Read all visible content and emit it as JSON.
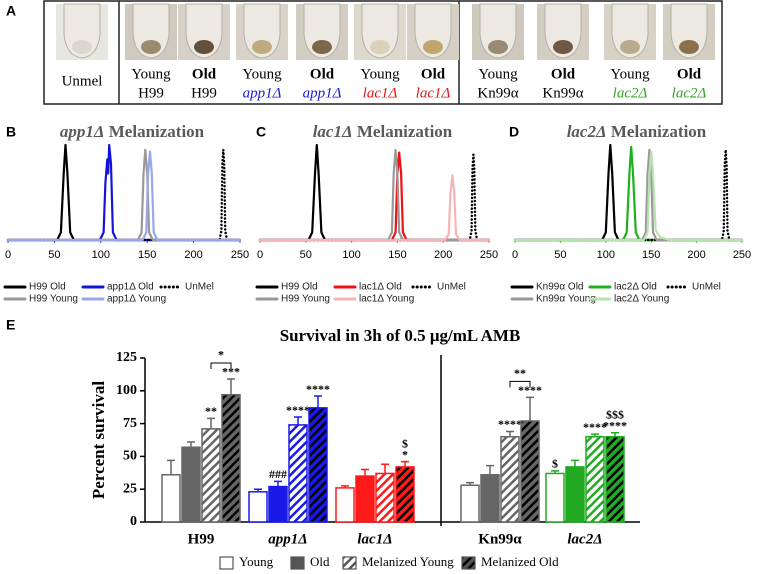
{
  "panel_labels": [
    "A",
    "B",
    "C",
    "D",
    "E"
  ],
  "photo_panel": {
    "samples": [
      {
        "lines": [
          "Unmel"
        ],
        "bold": false,
        "italic": false,
        "color": "#000000"
      },
      {
        "lines": [
          "Young",
          "H99"
        ],
        "bold": false,
        "italic": false,
        "color": "#000000"
      },
      {
        "lines": [
          "Old",
          "H99"
        ],
        "bold": true,
        "italic": false,
        "color": "#000000"
      },
      {
        "lines": [
          "Young",
          "app1Δ"
        ],
        "bold": false,
        "italic": true,
        "color": "#1a1ad0"
      },
      {
        "lines": [
          "Old",
          "app1Δ"
        ],
        "bold": true,
        "italic": true,
        "color": "#1a1ad0"
      },
      {
        "lines": [
          "Young",
          "lac1Δ"
        ],
        "bold": false,
        "italic": true,
        "color": "#e01818"
      },
      {
        "lines": [
          "Old",
          "lac1Δ"
        ],
        "bold": true,
        "italic": true,
        "color": "#e01818"
      },
      {
        "lines": [
          "Young",
          "Kn99α"
        ],
        "bold": false,
        "italic": false,
        "color": "#000000"
      },
      {
        "lines": [
          "Old",
          "Kn99α"
        ],
        "bold": true,
        "italic": false,
        "color": "#000000"
      },
      {
        "lines": [
          "Young",
          "lac2Δ"
        ],
        "bold": false,
        "italic": true,
        "color": "#3aa02a"
      },
      {
        "lines": [
          "Old",
          "lac2Δ"
        ],
        "bold": true,
        "italic": true,
        "color": "#3aa02a"
      }
    ]
  },
  "chart_data": [
    {
      "type": "line",
      "title": "app1Δ Melanization",
      "axis_color": "#3c46c8",
      "xlim": [
        0,
        250
      ],
      "xticks": [
        0,
        50,
        100,
        150,
        200,
        250
      ],
      "ylim": [
        0,
        100
      ],
      "series": [
        {
          "name": "H99 Old",
          "color": "#000000",
          "dash": "solid",
          "x": [
            0,
            53,
            57,
            60,
            62,
            64,
            67,
            71,
            250
          ],
          "values": [
            0,
            0,
            8,
            70,
            100,
            70,
            8,
            0,
            0
          ]
        },
        {
          "name": "app1Δ Old",
          "color": "#1414d8",
          "dash": "solid",
          "x": [
            0,
            99,
            103,
            105,
            107,
            108,
            109,
            111,
            113,
            117,
            250
          ],
          "values": [
            0,
            0,
            8,
            60,
            85,
            70,
            100,
            80,
            8,
            0,
            0
          ]
        },
        {
          "name": "UnMel",
          "color": "#000000",
          "dash": "dotted",
          "x": [
            0,
            228,
            230,
            231,
            232,
            233,
            234,
            236,
            250
          ],
          "values": [
            0,
            0,
            10,
            80,
            95,
            80,
            10,
            0,
            0
          ]
        },
        {
          "name": "H99 Young",
          "color": "#999999",
          "dash": "solid",
          "x": [
            0,
            140,
            144,
            146,
            148,
            150,
            152,
            156,
            250
          ],
          "values": [
            0,
            0,
            8,
            70,
            95,
            70,
            8,
            0,
            0
          ]
        },
        {
          "name": "app1Δ Young",
          "color": "#9aa6ea",
          "dash": "solid",
          "x": [
            0,
            145,
            149,
            151,
            153,
            155,
            157,
            161,
            250
          ],
          "values": [
            0,
            0,
            8,
            70,
            93,
            70,
            8,
            0,
            0
          ]
        }
      ]
    },
    {
      "type": "line",
      "title": "lac1Δ Melanization",
      "axis_color": "#e07a7a",
      "xlim": [
        0,
        250
      ],
      "xticks": [
        0,
        50,
        100,
        150,
        200,
        250
      ],
      "ylim": [
        0,
        100
      ],
      "series": [
        {
          "name": "H99 Old",
          "color": "#000000",
          "dash": "solid",
          "x": [
            0,
            53,
            57,
            60,
            62,
            64,
            67,
            71,
            250
          ],
          "values": [
            0,
            0,
            8,
            70,
            100,
            70,
            8,
            0,
            0
          ]
        },
        {
          "name": "lac1Δ Old",
          "color": "#ee1111",
          "dash": "solid",
          "x": [
            0,
            144,
            148,
            150,
            152,
            154,
            156,
            160,
            250
          ],
          "values": [
            0,
            0,
            8,
            70,
            92,
            70,
            8,
            0,
            0
          ]
        },
        {
          "name": "UnMel",
          "color": "#000000",
          "dash": "dotted",
          "x": [
            0,
            229,
            231,
            232,
            233,
            234,
            235,
            237,
            250
          ],
          "values": [
            0,
            0,
            10,
            75,
            90,
            75,
            10,
            0,
            0
          ]
        },
        {
          "name": "H99 Young",
          "color": "#999999",
          "dash": "solid",
          "x": [
            0,
            140,
            144,
            146,
            148,
            150,
            152,
            156,
            250
          ],
          "values": [
            0,
            0,
            8,
            70,
            95,
            70,
            8,
            0,
            0
          ]
        },
        {
          "name": "lac1Δ Young",
          "color": "#f5b5b5",
          "dash": "solid",
          "x": [
            0,
            202,
            206,
            208,
            210,
            212,
            214,
            218,
            250
          ],
          "values": [
            0,
            0,
            6,
            50,
            68,
            50,
            6,
            0,
            0
          ]
        }
      ]
    },
    {
      "type": "line",
      "title": "lac2Δ Melanization",
      "axis_color": "#6ab84c",
      "xlim": [
        0,
        250
      ],
      "xticks": [
        0,
        50,
        100,
        150,
        200,
        250
      ],
      "ylim": [
        0,
        100
      ],
      "series": [
        {
          "name": "Kn99α Old",
          "color": "#000000",
          "dash": "solid",
          "x": [
            0,
            96,
            100,
            103,
            105,
            107,
            110,
            114,
            250
          ],
          "values": [
            0,
            0,
            8,
            70,
            100,
            70,
            8,
            0,
            0
          ]
        },
        {
          "name": "lac2Δ Old",
          "color": "#1eb01e",
          "dash": "solid",
          "x": [
            0,
            119,
            123,
            126,
            128,
            130,
            133,
            137,
            250
          ],
          "values": [
            0,
            0,
            8,
            70,
            98,
            70,
            8,
            0,
            0
          ]
        },
        {
          "name": "UnMel",
          "color": "#000000",
          "dash": "dotted",
          "x": [
            0,
            228,
            230,
            231,
            232,
            233,
            234,
            236,
            250
          ],
          "values": [
            0,
            0,
            10,
            78,
            95,
            78,
            10,
            0,
            0
          ]
        },
        {
          "name": "Kn99α Young",
          "color": "#999999",
          "dash": "solid",
          "x": [
            0,
            140,
            144,
            146,
            148,
            150,
            152,
            156,
            250
          ],
          "values": [
            0,
            0,
            8,
            70,
            95,
            70,
            8,
            0,
            0
          ]
        },
        {
          "name": "lac2Δ Young",
          "color": "#b8e2b0",
          "dash": "solid",
          "x": [
            0,
            142,
            146,
            148,
            150,
            152,
            155,
            160,
            170,
            250
          ],
          "values": [
            0,
            0,
            8,
            70,
            93,
            70,
            10,
            3,
            0,
            0
          ]
        }
      ]
    },
    {
      "type": "bar",
      "title": "Survival in 3h of 0.5 μg/mL AMB",
      "ylabel": "Percent survival",
      "categories": [
        "H99",
        "app1Δ",
        "lac1Δ",
        "Kn99α",
        "lac2Δ"
      ],
      "category_italic": [
        false,
        true,
        true,
        false,
        true
      ],
      "category_colors": [
        "#666666",
        "#1a1ae8",
        "#ff1a1a",
        "#666666",
        "#22aa22"
      ],
      "legend_color": "#555555",
      "ylim": [
        0,
        125
      ],
      "yticks": [
        0,
        25,
        50,
        75,
        100,
        125
      ],
      "series": [
        {
          "name": "Young",
          "filled": false,
          "hatch": false,
          "values": [
            36,
            23,
            26,
            28,
            37
          ],
          "errors": [
            11,
            2,
            1.5,
            2,
            2
          ],
          "significance": [
            null,
            null,
            null,
            null,
            [
              "$"
            ]
          ]
        },
        {
          "name": "Old",
          "filled": true,
          "hatch": false,
          "values": [
            57,
            27,
            35,
            36,
            42
          ],
          "errors": [
            4,
            4,
            5,
            7,
            5
          ],
          "significance": [
            null,
            [
              "###"
            ],
            null,
            null,
            null
          ]
        },
        {
          "name": "Melanized Young",
          "filled": false,
          "hatch": true,
          "values": [
            71,
            74,
            37,
            65,
            65
          ],
          "errors": [
            8,
            6,
            7,
            4,
            2
          ],
          "significance": [
            [
              "**"
            ],
            [
              "****"
            ],
            null,
            [
              "****"
            ],
            [
              "****"
            ]
          ]
        },
        {
          "name": "Melanized Old",
          "filled": true,
          "hatch": true,
          "values": [
            97,
            87,
            42,
            77,
            65
          ],
          "errors": [
            12,
            9,
            4,
            18,
            3
          ],
          "significance": [
            [
              "***"
            ],
            [
              "****"
            ],
            [
              "$",
              "*"
            ],
            [
              "****"
            ],
            [
              "$$$",
              "****"
            ]
          ]
        }
      ],
      "brackets": [
        {
          "category": "H99",
          "series": [
            "Melanized Young",
            "Melanized Old"
          ],
          "label": "*"
        },
        {
          "category": "Kn99α",
          "series": [
            "Melanized Young",
            "Melanized Old"
          ],
          "label": "**"
        }
      ]
    }
  ]
}
